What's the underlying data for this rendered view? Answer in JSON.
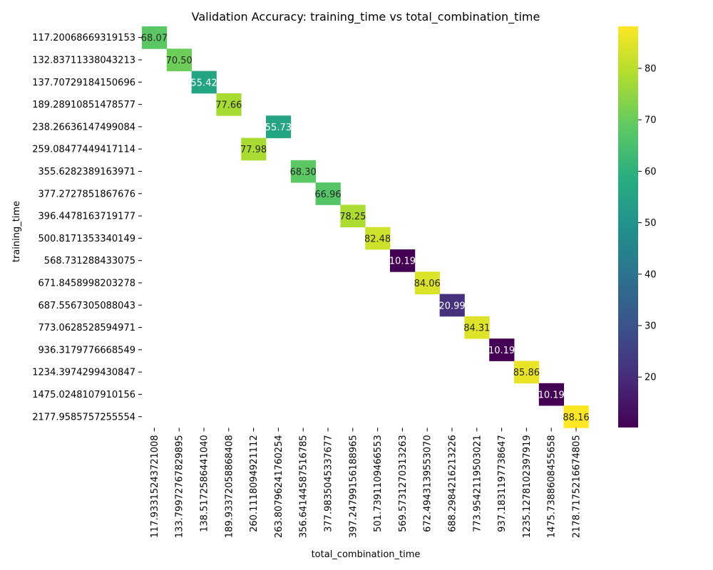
{
  "chart_data": {
    "type": "heatmap",
    "title": "Validation Accuracy: training_time vs total_combination_time",
    "xlabel": "total_combination_time",
    "ylabel": "training_time",
    "x_categories": [
      "117.93315243721008",
      "133.79972767829895",
      "138.5172586441040",
      "189.93372058868408",
      "260.1118094921112",
      "263.80796241760254",
      "356.64144587516785",
      "377.9835045337677",
      "397.24799156188965",
      "501.7391109466553",
      "569.5731270313263",
      "672.4943139553070",
      "688.2984216213226",
      "773.9542119503021",
      "937.1831197738647",
      "1235.1278102397919",
      "1475.7388608455658",
      "2178.7175216674805"
    ],
    "y_categories": [
      "117.20068669319153",
      "132.83711338043213",
      "137.70729184150696",
      "189.28910851478577",
      "238.26636147499084",
      "259.08477449417114",
      "355.6282389163971",
      "377.2727851867676",
      "396.4478163719177",
      "500.8171353340149",
      "568.731288433075",
      "671.8458998203278",
      "687.5567305088043",
      "773.0628528594971",
      "936.3179776668549",
      "1234.3974299430847",
      "1475.0248107910156",
      "2177.9585757255554"
    ],
    "cells": [
      {
        "row": 0,
        "col": 0,
        "value": 68.07,
        "label": "68.07"
      },
      {
        "row": 1,
        "col": 1,
        "value": 70.5,
        "label": "70.50"
      },
      {
        "row": 2,
        "col": 2,
        "value": 55.42,
        "label": "55.42"
      },
      {
        "row": 3,
        "col": 3,
        "value": 77.66,
        "label": "77.66"
      },
      {
        "row": 4,
        "col": 5,
        "value": 55.73,
        "label": "55.73"
      },
      {
        "row": 5,
        "col": 4,
        "value": 77.98,
        "label": "77.98"
      },
      {
        "row": 6,
        "col": 6,
        "value": 68.3,
        "label": "68.30"
      },
      {
        "row": 7,
        "col": 7,
        "value": 66.96,
        "label": "66.96"
      },
      {
        "row": 8,
        "col": 8,
        "value": 78.25,
        "label": "78.25"
      },
      {
        "row": 9,
        "col": 9,
        "value": 82.48,
        "label": "82.48"
      },
      {
        "row": 10,
        "col": 10,
        "value": 10.19,
        "label": "10.19"
      },
      {
        "row": 11,
        "col": 11,
        "value": 84.06,
        "label": "84.06"
      },
      {
        "row": 12,
        "col": 12,
        "value": 20.99,
        "label": "20.99"
      },
      {
        "row": 13,
        "col": 13,
        "value": 84.31,
        "label": "84.31"
      },
      {
        "row": 14,
        "col": 14,
        "value": 10.19,
        "label": "10.19"
      },
      {
        "row": 15,
        "col": 15,
        "value": 85.86,
        "label": "85.86"
      },
      {
        "row": 16,
        "col": 16,
        "value": 10.19,
        "label": "10.19"
      },
      {
        "row": 17,
        "col": 17,
        "value": 88.16,
        "label": "88.16"
      }
    ],
    "colormap": "viridis",
    "value_range": [
      10.19,
      88.16
    ],
    "colorbar_ticks": [
      "20",
      "30",
      "40",
      "50",
      "60",
      "70",
      "80"
    ],
    "colorbar_tick_values": [
      20,
      30,
      40,
      50,
      60,
      70,
      80
    ]
  }
}
